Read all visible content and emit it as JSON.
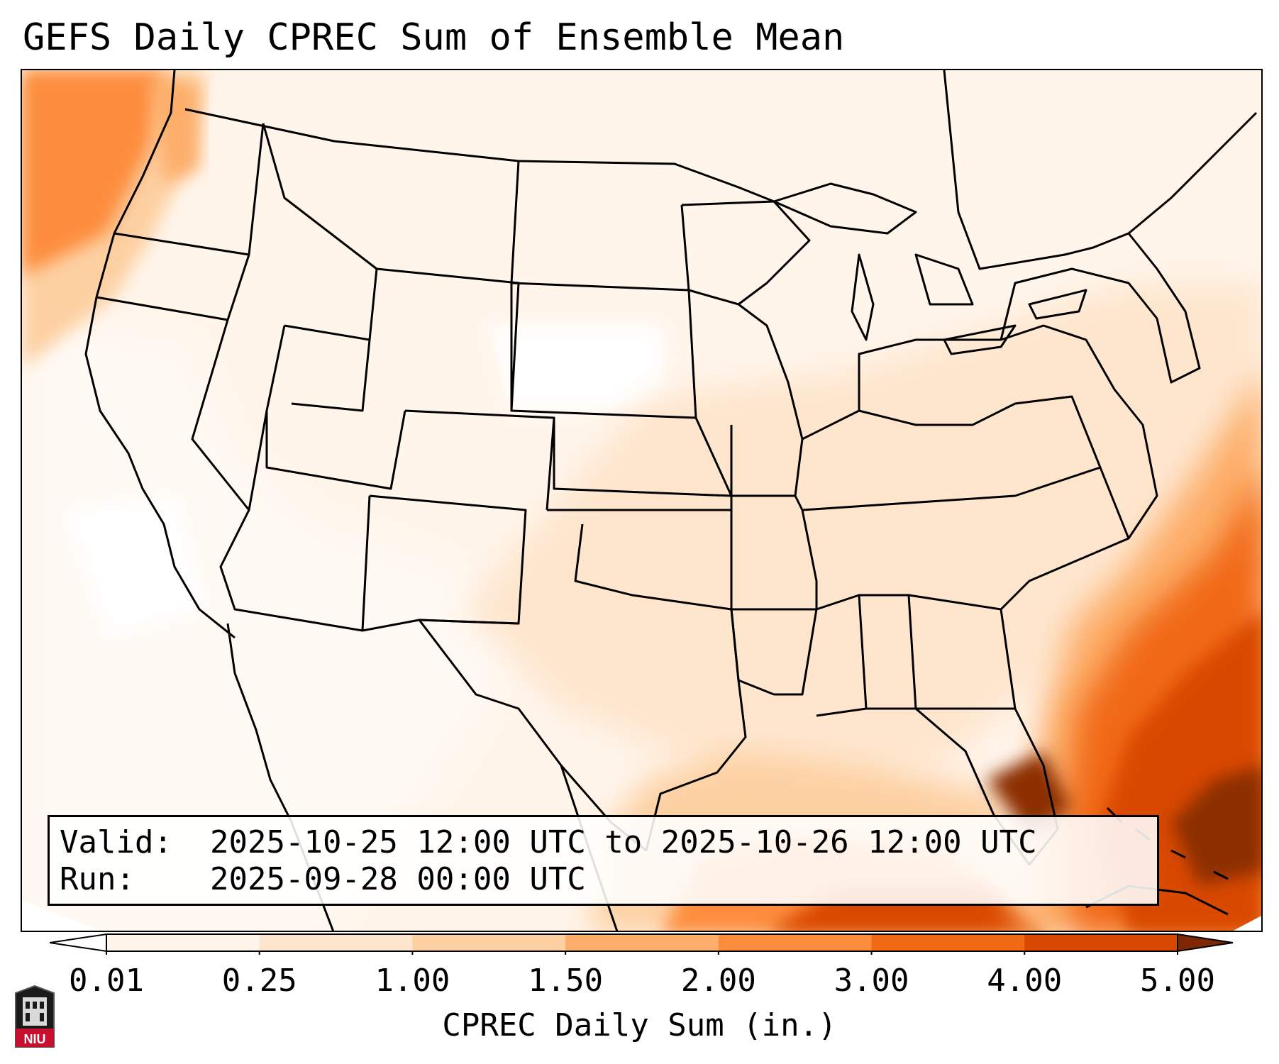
{
  "title": "GEFS Daily CPREC Sum of Ensemble Mean",
  "info": {
    "valid_key": "Valid:",
    "valid_value": "2025-10-25 12:00 UTC to 2025-10-26 12:00 UTC",
    "run_key": "Run:",
    "run_value": "2025-09-28 00:00 UTC"
  },
  "colorbar": {
    "label": "CPREC Daily Sum (in.)",
    "ticks": [
      "0.01",
      "0.25",
      "1.00",
      "1.50",
      "2.00",
      "3.00",
      "4.00",
      "5.00"
    ],
    "colors": [
      "#fff5eb",
      "#fee6ce",
      "#fdd0a2",
      "#fdae6b",
      "#fd8d3c",
      "#f16913",
      "#d94801",
      "#8c2d04"
    ],
    "under_color": "#ffffff",
    "over_color": "#7f2704"
  },
  "logo": {
    "text": "NIU",
    "color": "#c8102e"
  }
}
